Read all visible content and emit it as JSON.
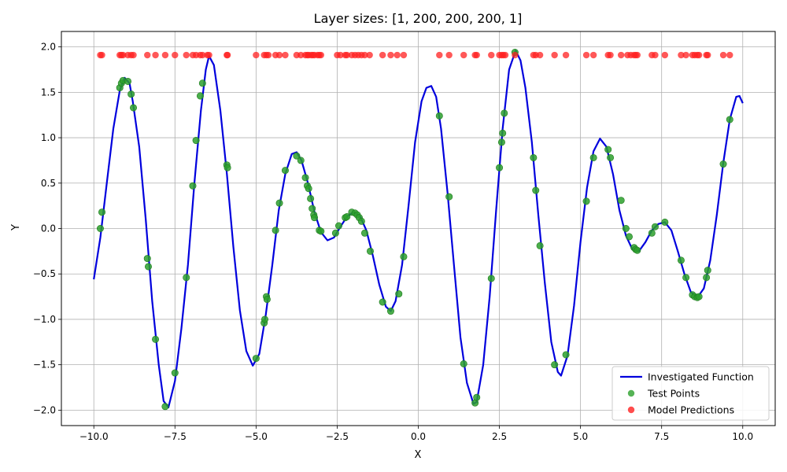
{
  "chart_data": {
    "type": "line",
    "title": "Layer sizes: [1, 200, 200, 200, 1]",
    "xlabel": "X",
    "ylabel": "Y",
    "xlim": [
      -11,
      11
    ],
    "ylim": [
      -2.17,
      2.17
    ],
    "xticks": [
      -10.0,
      -7.5,
      -5.0,
      -2.5,
      0.0,
      2.5,
      5.0,
      7.5,
      10.0
    ],
    "yticks": [
      -2.0,
      -1.5,
      -1.0,
      -0.5,
      0.0,
      0.5,
      1.0,
      1.5,
      2.0
    ],
    "xtick_labels": [
      "−10.0",
      "−7.5",
      "−5.0",
      "−2.5",
      "0.0",
      "2.5",
      "5.0",
      "7.5",
      "10.0"
    ],
    "ytick_labels": [
      "−2.0",
      "−1.5",
      "−1.0",
      "−0.5",
      "0.0",
      "0.5",
      "1.0",
      "1.5",
      "2.0"
    ],
    "grid": true,
    "legend_position": "lower-right",
    "colors": {
      "function": "#0000dd",
      "test": "#2ca02c",
      "pred": "#ff2020"
    },
    "series": [
      {
        "name": "Investigated Function",
        "kind": "line",
        "points": [
          [
            -10.0,
            -0.56
          ],
          [
            -9.8,
            -0.1
          ],
          [
            -9.6,
            0.5
          ],
          [
            -9.4,
            1.1
          ],
          [
            -9.2,
            1.52
          ],
          [
            -9.05,
            1.66
          ],
          [
            -8.9,
            1.6
          ],
          [
            -8.8,
            1.4
          ],
          [
            -8.6,
            0.9
          ],
          [
            -8.4,
            0.1
          ],
          [
            -8.2,
            -0.8
          ],
          [
            -8.0,
            -1.5
          ],
          [
            -7.85,
            -1.9
          ],
          [
            -7.7,
            -1.97
          ],
          [
            -7.5,
            -1.68
          ],
          [
            -7.3,
            -1.1
          ],
          [
            -7.1,
            -0.4
          ],
          [
            -6.9,
            0.5
          ],
          [
            -6.7,
            1.3
          ],
          [
            -6.55,
            1.75
          ],
          [
            -6.45,
            1.9
          ],
          [
            -6.3,
            1.8
          ],
          [
            -6.1,
            1.3
          ],
          [
            -5.9,
            0.6
          ],
          [
            -5.7,
            -0.2
          ],
          [
            -5.5,
            -0.9
          ],
          [
            -5.3,
            -1.35
          ],
          [
            -5.1,
            -1.51
          ],
          [
            -4.9,
            -1.38
          ],
          [
            -4.7,
            -0.95
          ],
          [
            -4.5,
            -0.4
          ],
          [
            -4.3,
            0.2
          ],
          [
            -4.1,
            0.6
          ],
          [
            -3.9,
            0.82
          ],
          [
            -3.75,
            0.84
          ],
          [
            -3.6,
            0.75
          ],
          [
            -3.4,
            0.5
          ],
          [
            -3.2,
            0.18
          ],
          [
            -3.0,
            -0.04
          ],
          [
            -2.8,
            -0.13
          ],
          [
            -2.6,
            -0.1
          ],
          [
            -2.4,
            0.02
          ],
          [
            -2.2,
            0.13
          ],
          [
            -2.0,
            0.18
          ],
          [
            -1.8,
            0.14
          ],
          [
            -1.6,
            -0.02
          ],
          [
            -1.4,
            -0.3
          ],
          [
            -1.2,
            -0.62
          ],
          [
            -1.0,
            -0.86
          ],
          [
            -0.85,
            -0.91
          ],
          [
            -0.7,
            -0.8
          ],
          [
            -0.5,
            -0.4
          ],
          [
            -0.3,
            0.25
          ],
          [
            -0.1,
            0.95
          ],
          [
            0.1,
            1.4
          ],
          [
            0.25,
            1.55
          ],
          [
            0.4,
            1.57
          ],
          [
            0.55,
            1.45
          ],
          [
            0.7,
            1.1
          ],
          [
            0.9,
            0.4
          ],
          [
            1.1,
            -0.4
          ],
          [
            1.3,
            -1.2
          ],
          [
            1.5,
            -1.7
          ],
          [
            1.7,
            -1.93
          ],
          [
            1.8,
            -1.91
          ],
          [
            2.0,
            -1.5
          ],
          [
            2.2,
            -0.75
          ],
          [
            2.4,
            0.2
          ],
          [
            2.6,
            1.1
          ],
          [
            2.8,
            1.75
          ],
          [
            3.0,
            1.96
          ],
          [
            3.15,
            1.85
          ],
          [
            3.3,
            1.55
          ],
          [
            3.5,
            0.95
          ],
          [
            3.7,
            0.15
          ],
          [
            3.9,
            -0.6
          ],
          [
            4.1,
            -1.25
          ],
          [
            4.3,
            -1.58
          ],
          [
            4.4,
            -1.62
          ],
          [
            4.6,
            -1.4
          ],
          [
            4.8,
            -0.85
          ],
          [
            5.0,
            -0.15
          ],
          [
            5.2,
            0.45
          ],
          [
            5.4,
            0.85
          ],
          [
            5.6,
            0.99
          ],
          [
            5.8,
            0.9
          ],
          [
            6.0,
            0.6
          ],
          [
            6.2,
            0.2
          ],
          [
            6.4,
            -0.08
          ],
          [
            6.6,
            -0.23
          ],
          [
            6.8,
            -0.25
          ],
          [
            7.0,
            -0.15
          ],
          [
            7.2,
            -0.02
          ],
          [
            7.4,
            0.05
          ],
          [
            7.6,
            0.07
          ],
          [
            7.8,
            -0.02
          ],
          [
            8.0,
            -0.25
          ],
          [
            8.2,
            -0.5
          ],
          [
            8.4,
            -0.7
          ],
          [
            8.6,
            -0.76
          ],
          [
            8.8,
            -0.66
          ],
          [
            9.0,
            -0.35
          ],
          [
            9.2,
            0.15
          ],
          [
            9.4,
            0.72
          ],
          [
            9.6,
            1.2
          ],
          [
            9.8,
            1.45
          ],
          [
            9.9,
            1.46
          ],
          [
            10.0,
            1.38
          ]
        ]
      },
      {
        "name": "Test Points",
        "kind": "scatter",
        "points": [
          [
            -9.8,
            0.0
          ],
          [
            -9.75,
            0.18
          ],
          [
            -9.2,
            1.55
          ],
          [
            -9.15,
            1.6
          ],
          [
            -9.1,
            1.63
          ],
          [
            -8.95,
            1.62
          ],
          [
            -8.85,
            1.48
          ],
          [
            -8.78,
            1.33
          ],
          [
            -8.35,
            -0.33
          ],
          [
            -8.32,
            -0.42
          ],
          [
            -8.1,
            -1.22
          ],
          [
            -7.8,
            -1.96
          ],
          [
            -7.5,
            -1.59
          ],
          [
            -7.15,
            -0.54
          ],
          [
            -6.95,
            0.47
          ],
          [
            -6.85,
            0.97
          ],
          [
            -6.72,
            1.46
          ],
          [
            -6.65,
            1.6
          ],
          [
            -5.9,
            0.7
          ],
          [
            -5.88,
            0.67
          ],
          [
            -5.0,
            -1.43
          ],
          [
            -4.75,
            -1.04
          ],
          [
            -4.73,
            -1.0
          ],
          [
            -4.68,
            -0.75
          ],
          [
            -4.66,
            -0.78
          ],
          [
            -4.4,
            -0.02
          ],
          [
            -4.28,
            0.28
          ],
          [
            -4.1,
            0.64
          ],
          [
            -3.75,
            0.8
          ],
          [
            -3.62,
            0.75
          ],
          [
            -3.48,
            0.56
          ],
          [
            -3.42,
            0.47
          ],
          [
            -3.38,
            0.44
          ],
          [
            -3.32,
            0.33
          ],
          [
            -3.27,
            0.22
          ],
          [
            -3.22,
            0.15
          ],
          [
            -3.2,
            0.12
          ],
          [
            -3.05,
            -0.02
          ],
          [
            -3.0,
            -0.03
          ],
          [
            -2.55,
            -0.05
          ],
          [
            -2.45,
            0.03
          ],
          [
            -2.25,
            0.12
          ],
          [
            -2.2,
            0.13
          ],
          [
            -2.05,
            0.18
          ],
          [
            -1.95,
            0.17
          ],
          [
            -1.88,
            0.15
          ],
          [
            -1.82,
            0.12
          ],
          [
            -1.75,
            0.08
          ],
          [
            -1.65,
            -0.05
          ],
          [
            -1.48,
            -0.25
          ],
          [
            -1.1,
            -0.81
          ],
          [
            -0.85,
            -0.91
          ],
          [
            -0.6,
            -0.72
          ],
          [
            -0.45,
            -0.31
          ],
          [
            0.65,
            1.24
          ],
          [
            0.95,
            0.35
          ],
          [
            1.4,
            -1.49
          ],
          [
            1.75,
            -1.92
          ],
          [
            1.8,
            -1.86
          ],
          [
            2.25,
            -0.55
          ],
          [
            2.5,
            0.67
          ],
          [
            2.57,
            0.95
          ],
          [
            2.6,
            1.05
          ],
          [
            2.65,
            1.27
          ],
          [
            2.98,
            1.94
          ],
          [
            3.55,
            0.78
          ],
          [
            3.62,
            0.42
          ],
          [
            3.75,
            -0.19
          ],
          [
            4.2,
            -1.5
          ],
          [
            4.55,
            -1.39
          ],
          [
            5.18,
            0.3
          ],
          [
            5.4,
            0.78
          ],
          [
            5.85,
            0.87
          ],
          [
            5.92,
            0.78
          ],
          [
            6.25,
            0.31
          ],
          [
            6.4,
            0.0
          ],
          [
            6.5,
            -0.09
          ],
          [
            6.65,
            -0.21
          ],
          [
            6.7,
            -0.23
          ],
          [
            6.75,
            -0.24
          ],
          [
            7.2,
            -0.05
          ],
          [
            7.3,
            0.02
          ],
          [
            7.6,
            0.07
          ],
          [
            8.1,
            -0.35
          ],
          [
            8.25,
            -0.54
          ],
          [
            8.45,
            -0.73
          ],
          [
            8.52,
            -0.75
          ],
          [
            8.6,
            -0.76
          ],
          [
            8.65,
            -0.75
          ],
          [
            8.88,
            -0.54
          ],
          [
            8.92,
            -0.46
          ],
          [
            9.4,
            0.71
          ],
          [
            9.6,
            1.2
          ]
        ]
      },
      {
        "name": "Model Predictions",
        "kind": "scatter",
        "y": 1.91,
        "x": [
          -9.8,
          -9.75,
          -9.2,
          -9.15,
          -9.1,
          -8.95,
          -8.85,
          -8.78,
          -8.35,
          -8.1,
          -7.8,
          -7.5,
          -7.15,
          -6.95,
          -6.85,
          -6.72,
          -6.65,
          -6.5,
          -6.45,
          -5.9,
          -5.88,
          -5.0,
          -4.75,
          -4.68,
          -4.62,
          -4.4,
          -4.28,
          -4.1,
          -3.75,
          -3.62,
          -3.48,
          -3.42,
          -3.38,
          -3.3,
          -3.25,
          -3.2,
          -3.1,
          -3.05,
          -3.0,
          -2.5,
          -2.4,
          -2.25,
          -2.2,
          -2.05,
          -1.95,
          -1.85,
          -1.75,
          -1.65,
          -1.5,
          -1.1,
          -0.85,
          -0.65,
          -0.45,
          0.65,
          0.95,
          1.4,
          1.75,
          1.8,
          2.25,
          2.5,
          2.57,
          2.62,
          2.68,
          2.98,
          3.55,
          3.62,
          3.75,
          4.2,
          4.55,
          5.18,
          5.4,
          5.85,
          5.92,
          6.25,
          6.45,
          6.55,
          6.65,
          6.7,
          6.75,
          7.2,
          7.3,
          7.6,
          8.1,
          8.25,
          8.45,
          8.52,
          8.6,
          8.65,
          8.88,
          8.92,
          9.4,
          9.6
        ]
      }
    ]
  }
}
